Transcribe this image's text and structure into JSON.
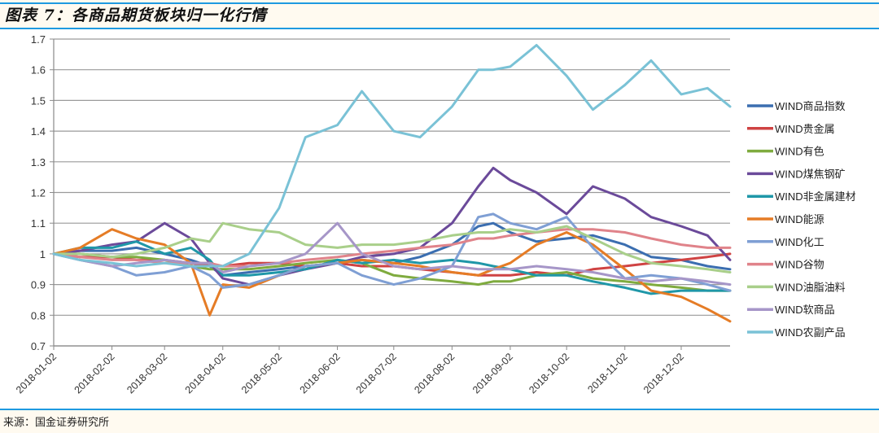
{
  "header": {
    "title": "图表 7：各商品期货板块归一化行情"
  },
  "footer": {
    "source": "来源：国金证券研究所"
  },
  "chart_data": {
    "type": "line",
    "title": "各商品期货板块归一化行情",
    "xlabel": "",
    "ylabel": "",
    "ylim": [
      0.7,
      1.7
    ],
    "yticks": [
      "1.7",
      "1.6",
      "1.5",
      "1.4",
      "1.3",
      "1.2",
      "1.1",
      "1",
      "0.9",
      "0.8",
      "0.7"
    ],
    "xticks": [
      "2018-01-02",
      "2018-02-02",
      "2018-03-02",
      "2018-04-02",
      "2018-05-02",
      "2018-06-02",
      "2018-07-02",
      "2018-08-02",
      "2018-09-02",
      "2018-10-02",
      "2018-11-02",
      "2018-12-02"
    ],
    "grid": "horizontal",
    "legend_position": "right",
    "x": [
      "2018-01-02",
      "2018-01-16",
      "2018-02-02",
      "2018-02-15",
      "2018-03-02",
      "2018-03-16",
      "2018-03-26",
      "2018-04-02",
      "2018-04-16",
      "2018-05-02",
      "2018-05-16",
      "2018-06-02",
      "2018-06-15",
      "2018-07-02",
      "2018-07-16",
      "2018-08-02",
      "2018-08-16",
      "2018-08-24",
      "2018-09-02",
      "2018-09-16",
      "2018-10-02",
      "2018-10-16",
      "2018-11-02",
      "2018-11-16",
      "2018-12-02",
      "2018-12-16",
      "2018-12-28"
    ],
    "series": [
      {
        "name": "WIND商品指数",
        "color": "#3b6eb0",
        "values": [
          1.0,
          1.01,
          1.01,
          1.02,
          1.0,
          0.98,
          0.96,
          0.93,
          0.94,
          0.95,
          0.96,
          0.97,
          0.98,
          0.97,
          0.99,
          1.03,
          1.09,
          1.1,
          1.07,
          1.04,
          1.05,
          1.06,
          1.03,
          0.99,
          0.98,
          0.96,
          0.95
        ]
      },
      {
        "name": "WIND贵金属",
        "color": "#cf4343",
        "values": [
          1.0,
          0.99,
          0.99,
          0.98,
          0.98,
          0.97,
          0.96,
          0.96,
          0.97,
          0.97,
          0.96,
          0.97,
          0.96,
          0.96,
          0.95,
          0.94,
          0.93,
          0.93,
          0.93,
          0.94,
          0.93,
          0.95,
          0.96,
          0.97,
          0.98,
          0.99,
          1.0
        ]
      },
      {
        "name": "WIND有色",
        "color": "#7fab3f",
        "values": [
          1.0,
          1.0,
          0.99,
          0.99,
          0.98,
          0.96,
          0.95,
          0.95,
          0.95,
          0.96,
          0.97,
          0.98,
          0.97,
          0.93,
          0.92,
          0.91,
          0.9,
          0.91,
          0.91,
          0.93,
          0.94,
          0.92,
          0.91,
          0.9,
          0.89,
          0.88,
          0.88
        ]
      },
      {
        "name": "WIND煤焦钢矿",
        "color": "#6b4a9a",
        "values": [
          1.0,
          1.01,
          1.03,
          1.04,
          1.1,
          1.05,
          0.97,
          0.92,
          0.9,
          0.93,
          0.95,
          0.97,
          0.99,
          1.0,
          1.02,
          1.1,
          1.22,
          1.28,
          1.24,
          1.2,
          1.13,
          1.22,
          1.18,
          1.12,
          1.09,
          1.06,
          0.98
        ]
      },
      {
        "name": "WIND非金属建材",
        "color": "#1f97a8",
        "values": [
          1.0,
          1.02,
          1.02,
          1.04,
          1.0,
          1.02,
          0.98,
          0.93,
          0.93,
          0.94,
          0.95,
          0.98,
          0.97,
          0.98,
          0.97,
          0.98,
          0.97,
          0.96,
          0.95,
          0.93,
          0.93,
          0.91,
          0.89,
          0.87,
          0.88,
          0.88,
          0.88
        ]
      },
      {
        "name": "WIND能源",
        "color": "#e57c26",
        "values": [
          1.0,
          1.02,
          1.08,
          1.05,
          1.03,
          0.97,
          0.8,
          0.9,
          0.89,
          0.93,
          0.96,
          0.97,
          0.98,
          0.97,
          0.96,
          0.94,
          0.93,
          0.95,
          0.97,
          1.03,
          1.07,
          1.03,
          0.95,
          0.88,
          0.86,
          0.82,
          0.78
        ]
      },
      {
        "name": "WIND化工",
        "color": "#7f9fd4",
        "values": [
          1.0,
          0.98,
          0.96,
          0.93,
          0.94,
          0.96,
          0.93,
          0.89,
          0.9,
          0.93,
          0.96,
          0.97,
          0.93,
          0.9,
          0.92,
          0.96,
          1.12,
          1.13,
          1.1,
          1.08,
          1.12,
          1.02,
          0.92,
          0.93,
          0.92,
          0.9,
          0.88
        ]
      },
      {
        "name": "WIND谷物",
        "color": "#e0838a",
        "values": [
          1.0,
          0.99,
          0.98,
          0.98,
          0.97,
          0.97,
          0.97,
          0.96,
          0.96,
          0.97,
          0.98,
          0.99,
          1.0,
          1.01,
          1.02,
          1.03,
          1.05,
          1.05,
          1.06,
          1.07,
          1.08,
          1.08,
          1.07,
          1.05,
          1.03,
          1.02,
          1.02
        ]
      },
      {
        "name": "WIND油脂油料",
        "color": "#a9cf8a",
        "values": [
          1.0,
          1.0,
          0.99,
          1.0,
          1.02,
          1.05,
          1.04,
          1.1,
          1.08,
          1.07,
          1.03,
          1.02,
          1.03,
          1.03,
          1.04,
          1.06,
          1.07,
          1.07,
          1.08,
          1.07,
          1.09,
          1.05,
          1.0,
          0.97,
          0.96,
          0.95,
          0.94
        ]
      },
      {
        "name": "WIND软商品",
        "color": "#a696c8",
        "values": [
          1.0,
          0.98,
          0.96,
          0.97,
          0.98,
          0.97,
          0.97,
          0.94,
          0.96,
          0.97,
          1.0,
          1.1,
          1.0,
          0.96,
          0.95,
          0.96,
          0.95,
          0.95,
          0.95,
          0.96,
          0.95,
          0.94,
          0.92,
          0.91,
          0.92,
          0.91,
          0.9
        ]
      },
      {
        "name": "WIND农副产品",
        "color": "#7ac2d6",
        "values": [
          1.0,
          0.98,
          0.97,
          0.96,
          0.97,
          0.96,
          0.96,
          0.96,
          1.0,
          1.15,
          1.38,
          1.42,
          1.53,
          1.4,
          1.38,
          1.48,
          1.6,
          1.6,
          1.61,
          1.68,
          1.58,
          1.47,
          1.55,
          1.63,
          1.52,
          1.54,
          1.48
        ]
      }
    ]
  }
}
